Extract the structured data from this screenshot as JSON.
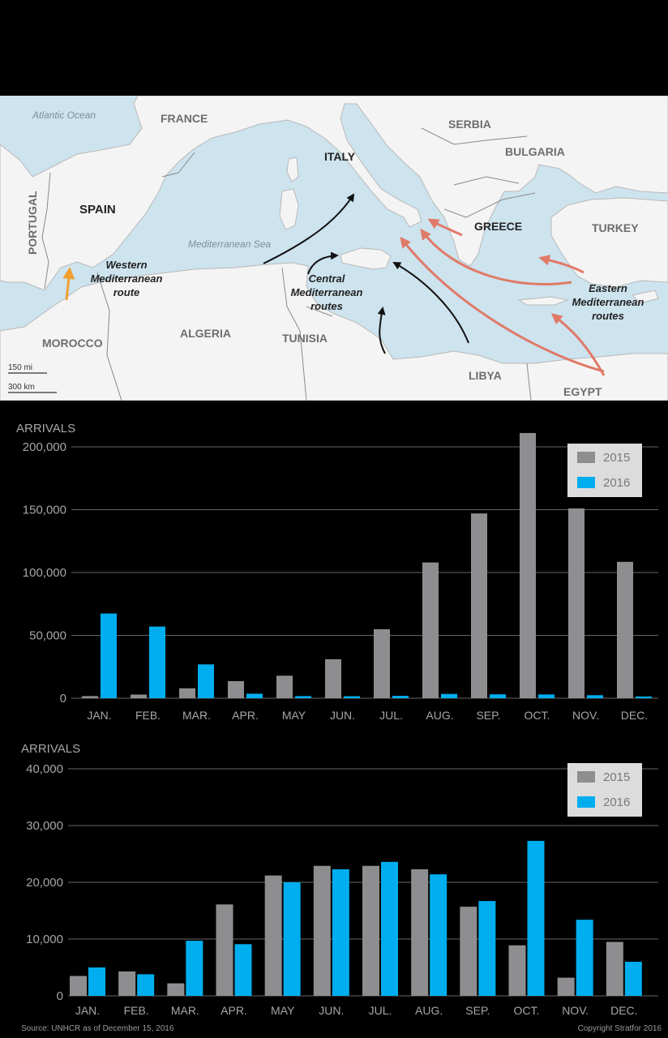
{
  "map": {
    "labels": {
      "atlantic": "Atlantic Ocean",
      "france": "FRANCE",
      "italy": "ITALY",
      "serbia": "SERBIA",
      "bulgaria": "BULGARIA",
      "portugal": "PORTUGAL",
      "spain": "SPAIN",
      "greece": "GREECE",
      "turkey": "TURKEY",
      "med_sea": "Mediterranean Sea",
      "western_route_1": "Western",
      "western_route_2": "Mediterranean",
      "western_route_3": "route",
      "central_routes_1": "Central",
      "central_routes_2": "Mediterranean",
      "central_routes_3": "routes",
      "eastern_routes_1": "Eastern",
      "eastern_routes_2": "Mediterranean",
      "eastern_routes_3": "routes",
      "morocco": "MOROCCO",
      "algeria": "ALGERIA",
      "tunisia": "TUNISIA",
      "libya": "LIBYA",
      "egypt": "EGYPT",
      "scale_mi": "150 mi",
      "scale_km": "300 km"
    },
    "colors": {
      "sea": "#cde3ee",
      "land": "#f4f4f4",
      "border": "#8a8a8a",
      "western_arrow": "#f0a030",
      "central_arrow": "#111111",
      "eastern_arrow": "#e07a68",
      "label_country": "#6d6d6d",
      "label_sea": "#7a8f9e"
    }
  },
  "chart_data": [
    {
      "type": "bar",
      "ylabel": "ARRIVALS",
      "categories": [
        "JAN.",
        "FEB.",
        "MAR.",
        "APR.",
        "MAY",
        "JUN.",
        "JUL.",
        "AUG.",
        "SEP.",
        "OCT.",
        "NOV.",
        "DEC."
      ],
      "series": [
        {
          "name": "2015",
          "color": "#8e8e90",
          "values": [
            1700,
            2900,
            7900,
            13600,
            17900,
            31000,
            54900,
            108000,
            147000,
            211000,
            151000,
            108500
          ]
        },
        {
          "name": "2016",
          "color": "#00aeef",
          "values": [
            67400,
            57000,
            26900,
            3600,
            1700,
            1600,
            1900,
            3400,
            3100,
            3000,
            2400,
            1400
          ]
        }
      ],
      "ylim": [
        0,
        200000
      ],
      "yticks": [
        "0",
        "50,000",
        "100,000",
        "150,000",
        "200,000"
      ],
      "ytick_values": [
        0,
        50000,
        100000,
        150000,
        200000
      ],
      "grid": true,
      "legend": "top-right"
    },
    {
      "type": "bar",
      "ylabel": "ARRIVALS",
      "categories": [
        "JAN.",
        "FEB.",
        "MAR.",
        "APR.",
        "MAY",
        "JUN.",
        "JUL.",
        "AUG.",
        "SEP.",
        "OCT.",
        "NOV.",
        "DEC."
      ],
      "series": [
        {
          "name": "2015",
          "color": "#8e8e90",
          "values": [
            3500,
            4300,
            2200,
            16100,
            21200,
            22900,
            22900,
            22300,
            15700,
            8900,
            3200,
            9500
          ]
        },
        {
          "name": "2016",
          "color": "#00aeef",
          "values": [
            5000,
            3800,
            9700,
            9100,
            20000,
            22300,
            23600,
            21400,
            16700,
            27300,
            13400,
            6000
          ]
        }
      ],
      "ylim": [
        0,
        40000
      ],
      "yticks": [
        "0",
        "10,000",
        "20,000",
        "30,000",
        "40,000"
      ],
      "ytick_values": [
        0,
        10000,
        20000,
        30000,
        40000
      ],
      "grid": true,
      "legend": "top-right"
    }
  ],
  "footer": {
    "source": "Source: UNHCR as of December 15, 2016",
    "copyright": "Copyright Stratfor 2016"
  }
}
